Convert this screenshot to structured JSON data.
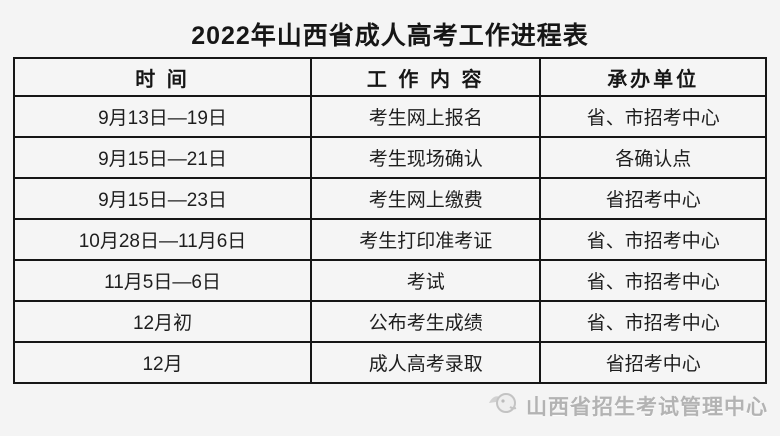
{
  "page": {
    "title": "2022年山西省成人高考工作进程表"
  },
  "table": {
    "headers": [
      "时 间",
      "工 作 内 容",
      "承办单位"
    ],
    "rows": [
      [
        "9月13日—19日",
        "考生网上报名",
        "省、市招考中心"
      ],
      [
        "9月15日—21日",
        "考生现场确认",
        "各确认点"
      ],
      [
        "9月15日—23日",
        "考生网上缴费",
        "省招考中心"
      ],
      [
        "10月28日—11月6日",
        "考生打印准考证",
        "省、市招考中心"
      ],
      [
        "11月5日—6日",
        "考试",
        "省、市招考中心"
      ],
      [
        "12月初",
        "公布考生成绩",
        "省、市招考中心"
      ],
      [
        "12月",
        "成人高考录取",
        "省招考中心"
      ]
    ]
  },
  "watermark": {
    "label": "山西省招生考试管理中心",
    "icon": "mascot-logo-icon"
  },
  "colors": {
    "background": "#f4f4f4",
    "border": "#161616",
    "text": "#1c1c1c",
    "watermark": "#b3b3b3"
  }
}
